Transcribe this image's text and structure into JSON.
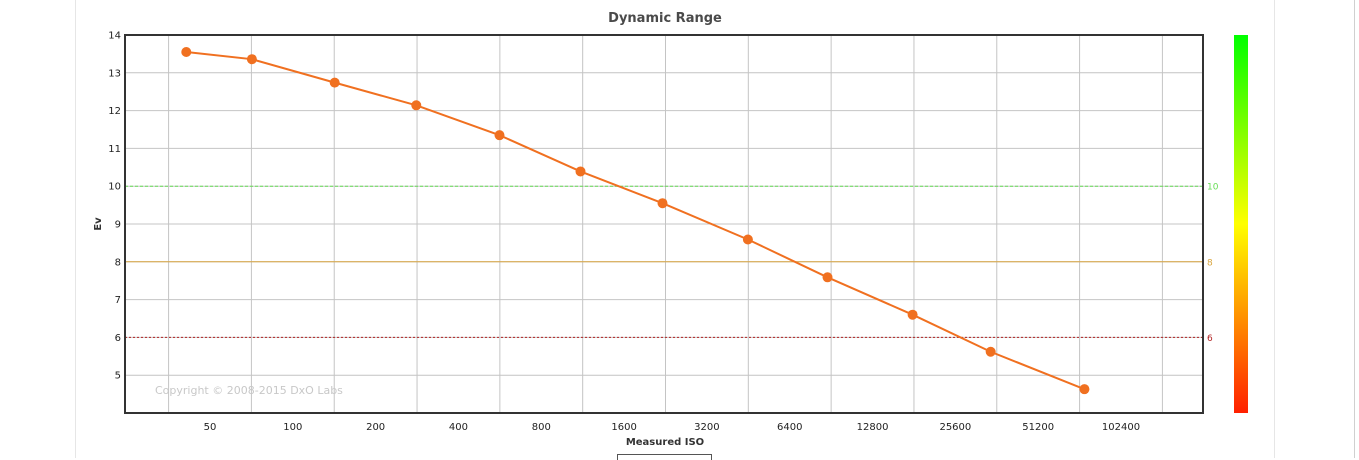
{
  "chart_data": {
    "type": "line",
    "title": "Dynamic Range",
    "xlabel": "Measured ISO",
    "ylabel": "Ev",
    "copyright": "Copyright © 2008-2015 DxO Labs",
    "x_scale": "log2",
    "x_ticks": [
      50,
      100,
      200,
      400,
      800,
      1600,
      3200,
      6400,
      12800,
      25600,
      51200,
      102400
    ],
    "y_ticks": [
      5,
      6,
      7,
      8,
      9,
      10,
      11,
      12,
      13,
      14
    ],
    "ylim": [
      4,
      14
    ],
    "grid": true,
    "series": [
      {
        "color": "#f07020",
        "points": [
          {
            "x": 41,
            "y": 13.55
          },
          {
            "x": 71,
            "y": 13.36
          },
          {
            "x": 142,
            "y": 12.74
          },
          {
            "x": 281,
            "y": 12.14
          },
          {
            "x": 564,
            "y": 11.35
          },
          {
            "x": 1111,
            "y": 10.39
          },
          {
            "x": 2207,
            "y": 9.55
          },
          {
            "x": 4510,
            "y": 8.59
          },
          {
            "x": 8780,
            "y": 7.59
          },
          {
            "x": 17900,
            "y": 6.6
          },
          {
            "x": 34400,
            "y": 5.62
          },
          {
            "x": 75400,
            "y": 4.63
          }
        ]
      }
    ],
    "reference_lines": [
      {
        "y": 10,
        "label": "10",
        "color": "#66dd55",
        "style": "dashed"
      },
      {
        "y": 8,
        "label": "8",
        "color": "#d9a640",
        "style": "solid"
      },
      {
        "y": 6,
        "label": "6",
        "color": "#b22222",
        "style": "dotted"
      }
    ],
    "color_scale": {
      "top": "#00ff00",
      "middle": "#ffff00",
      "bottom": "#ff2000"
    }
  }
}
